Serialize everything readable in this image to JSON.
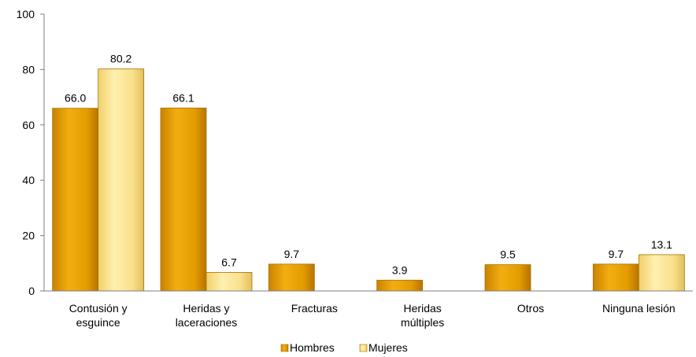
{
  "chart_data": {
    "type": "bar",
    "categories": [
      [
        "Contusión y",
        "esguince"
      ],
      [
        "Heridas y",
        "laceraciones"
      ],
      [
        "Fracturas"
      ],
      [
        "Heridas",
        "múltiples"
      ],
      [
        "Otros"
      ],
      [
        "Ninguna lesión"
      ]
    ],
    "series": [
      {
        "name": "Hombres",
        "values": [
          66.0,
          66.1,
          9.7,
          3.9,
          9.5,
          9.7
        ],
        "labels": [
          "66.0",
          "66.1",
          "9.7",
          "3.9",
          "9.5",
          "9.7"
        ],
        "color": "#E8A000"
      },
      {
        "name": "Mujeres",
        "values": [
          80.2,
          6.7,
          null,
          null,
          null,
          13.1
        ],
        "labels": [
          "80.2",
          "6.7",
          null,
          null,
          null,
          "13.1"
        ],
        "color": "#FAE18A"
      }
    ],
    "ylim": [
      0,
      100
    ],
    "yticks": [
      "0",
      "20",
      "40",
      "60",
      "80",
      "100"
    ],
    "legend_position": "bottom",
    "grid": false
  }
}
